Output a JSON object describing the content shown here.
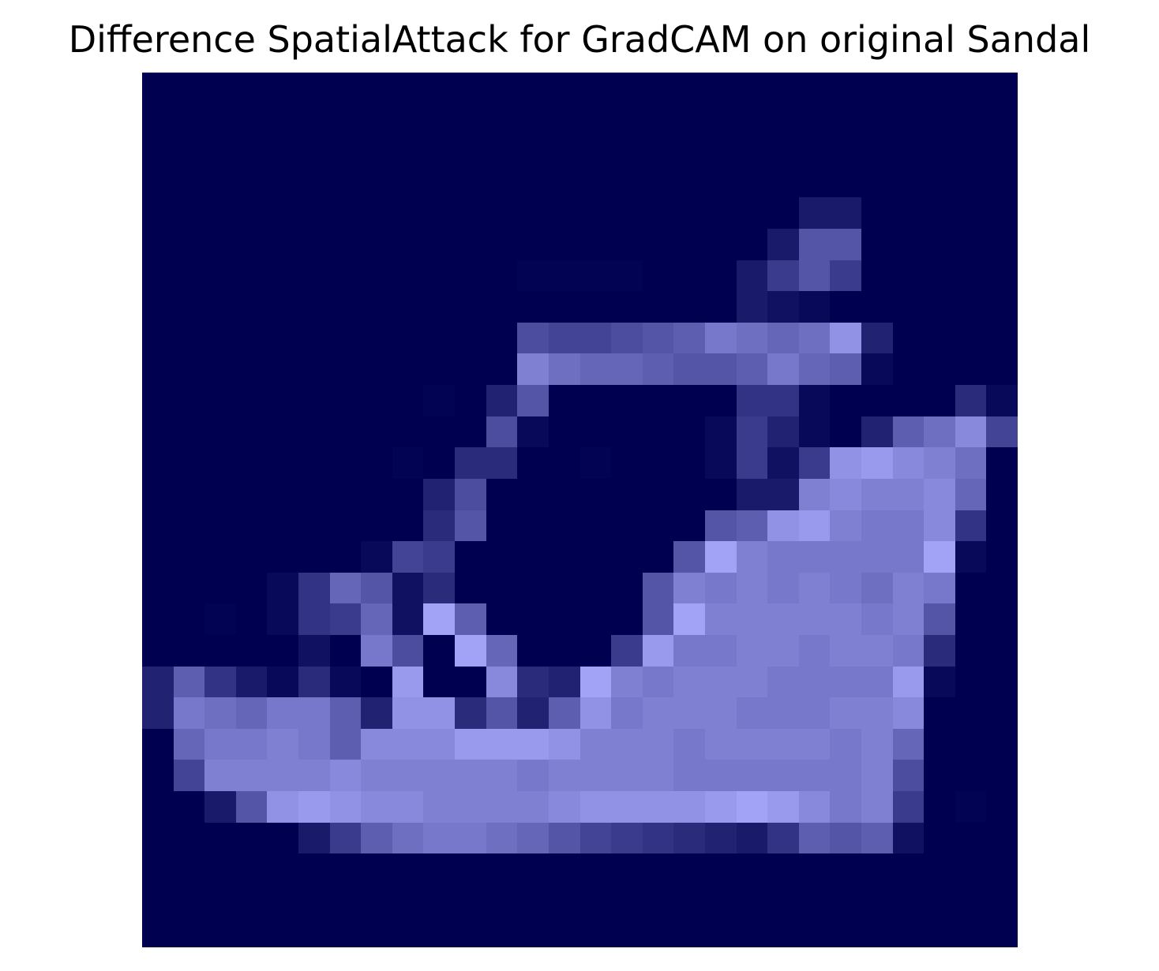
{
  "chart_data": {
    "type": "heatmap",
    "title": "Difference SpatialAttack for GradCAM on original Sandal",
    "xlabel": "",
    "ylabel": "",
    "axes_visible": false,
    "grid": false,
    "colorbar": false,
    "rows": 28,
    "cols": 28,
    "value_range": [
      0,
      1
    ],
    "colors": {
      "low": "#000050",
      "high": "#aaaaff"
    },
    "values": [
      [
        0,
        0,
        0,
        0,
        0,
        0,
        0,
        0,
        0,
        0,
        0,
        0,
        0,
        0,
        0,
        0,
        0,
        0,
        0,
        0,
        0,
        0,
        0,
        0,
        0,
        0,
        0,
        0
      ],
      [
        0,
        0,
        0,
        0,
        0,
        0,
        0,
        0,
        0,
        0,
        0,
        0,
        0,
        0,
        0,
        0,
        0,
        0,
        0,
        0,
        0,
        0,
        0,
        0,
        0,
        0,
        0,
        0
      ],
      [
        0,
        0,
        0,
        0,
        0,
        0,
        0,
        0,
        0,
        0,
        0,
        0,
        0,
        0,
        0,
        0,
        0,
        0,
        0,
        0,
        0,
        0,
        0,
        0,
        0,
        0,
        0,
        0
      ],
      [
        0,
        0,
        0,
        0,
        0,
        0,
        0,
        0,
        0,
        0,
        0,
        0,
        0,
        0,
        0,
        0,
        0,
        0,
        0,
        0,
        0,
        0,
        0,
        0,
        0,
        0,
        0,
        0
      ],
      [
        0,
        0,
        0,
        0,
        0,
        0,
        0,
        0,
        0,
        0,
        0,
        0,
        0,
        0,
        0,
        0,
        0,
        0,
        0,
        0,
        0,
        0.15,
        0.15,
        0,
        0,
        0,
        0,
        0
      ],
      [
        0,
        0,
        0,
        0,
        0,
        0,
        0,
        0,
        0,
        0,
        0,
        0,
        0,
        0,
        0,
        0,
        0,
        0,
        0,
        0,
        0.15,
        0.5,
        0.5,
        0,
        0,
        0,
        0,
        0
      ],
      [
        0,
        0,
        0,
        0,
        0,
        0,
        0,
        0,
        0,
        0,
        0,
        0,
        0.02,
        0.02,
        0.02,
        0.02,
        0,
        0,
        0,
        0.15,
        0.35,
        0.5,
        0.35,
        0,
        0,
        0,
        0,
        0
      ],
      [
        0,
        0,
        0,
        0,
        0,
        0,
        0,
        0,
        0,
        0,
        0,
        0,
        0,
        0,
        0,
        0,
        0,
        0,
        0,
        0.15,
        0.1,
        0.05,
        0,
        0,
        0,
        0,
        0,
        0
      ],
      [
        0,
        0,
        0,
        0,
        0,
        0,
        0,
        0,
        0,
        0,
        0,
        0,
        0.45,
        0.4,
        0.4,
        0.45,
        0.5,
        0.55,
        0.7,
        0.65,
        0.6,
        0.65,
        0.85,
        0.2,
        0,
        0,
        0,
        0
      ],
      [
        0,
        0,
        0,
        0,
        0,
        0,
        0,
        0,
        0,
        0,
        0,
        0,
        0.75,
        0.65,
        0.6,
        0.6,
        0.55,
        0.5,
        0.5,
        0.55,
        0.7,
        0.6,
        0.55,
        0.05,
        0,
        0,
        0,
        0
      ],
      [
        0,
        0,
        0,
        0,
        0,
        0,
        0,
        0,
        0,
        0.02,
        0,
        0.2,
        0.5,
        0,
        0,
        0,
        0,
        0,
        0,
        0.3,
        0.3,
        0.05,
        0,
        0,
        0,
        0,
        0.25,
        0.05
      ],
      [
        0,
        0,
        0,
        0,
        0,
        0,
        0,
        0,
        0,
        0,
        0,
        0.45,
        0.05,
        0,
        0,
        0,
        0,
        0,
        0.05,
        0.35,
        0.2,
        0.05,
        0,
        0.2,
        0.55,
        0.65,
        0.8,
        0.4
      ],
      [
        0,
        0,
        0,
        0,
        0,
        0,
        0,
        0,
        0.02,
        0,
        0.25,
        0.25,
        0,
        0,
        0.02,
        0,
        0,
        0,
        0.05,
        0.35,
        0.1,
        0.35,
        0.85,
        0.9,
        0.8,
        0.75,
        0.65,
        0
      ],
      [
        0,
        0,
        0,
        0,
        0,
        0,
        0,
        0,
        0,
        0.2,
        0.45,
        0,
        0,
        0,
        0,
        0,
        0,
        0,
        0,
        0.15,
        0.15,
        0.75,
        0.8,
        0.75,
        0.75,
        0.8,
        0.6,
        0
      ],
      [
        0,
        0,
        0,
        0,
        0,
        0,
        0,
        0,
        0,
        0.25,
        0.5,
        0,
        0,
        0,
        0,
        0,
        0,
        0,
        0.5,
        0.55,
        0.85,
        0.9,
        0.75,
        0.7,
        0.7,
        0.8,
        0.3,
        0
      ],
      [
        0,
        0,
        0,
        0,
        0,
        0,
        0,
        0.05,
        0.4,
        0.35,
        0,
        0,
        0,
        0,
        0,
        0,
        0,
        0.5,
        0.95,
        0.75,
        0.7,
        0.7,
        0.7,
        0.7,
        0.7,
        0.95,
        0.05,
        0
      ],
      [
        0,
        0,
        0,
        0,
        0.05,
        0.3,
        0.6,
        0.5,
        0.1,
        0.25,
        0,
        0,
        0,
        0,
        0,
        0,
        0.5,
        0.75,
        0.7,
        0.75,
        0.7,
        0.75,
        0.7,
        0.65,
        0.75,
        0.7,
        0,
        0
      ],
      [
        0,
        0,
        0.02,
        0,
        0.05,
        0.3,
        0.35,
        0.6,
        0.1,
        0.95,
        0.55,
        0,
        0,
        0,
        0,
        0,
        0.5,
        0.95,
        0.75,
        0.75,
        0.75,
        0.75,
        0.75,
        0.7,
        0.75,
        0.5,
        0,
        0
      ],
      [
        0,
        0,
        0,
        0,
        0,
        0.1,
        0,
        0.7,
        0.45,
        0,
        0.95,
        0.6,
        0,
        0,
        0,
        0.35,
        0.9,
        0.7,
        0.7,
        0.75,
        0.75,
        0.7,
        0.75,
        0.75,
        0.7,
        0.25,
        0,
        0
      ],
      [
        0.2,
        0.55,
        0.3,
        0.15,
        0.05,
        0.25,
        0.05,
        0,
        0.9,
        0,
        0,
        0.8,
        0.25,
        0.2,
        0.95,
        0.75,
        0.7,
        0.75,
        0.75,
        0.75,
        0.7,
        0.7,
        0.7,
        0.7,
        0.9,
        0.05,
        0,
        0
      ],
      [
        0.2,
        0.7,
        0.65,
        0.6,
        0.7,
        0.7,
        0.55,
        0.2,
        0.85,
        0.85,
        0.25,
        0.5,
        0.2,
        0.55,
        0.85,
        0.7,
        0.75,
        0.75,
        0.75,
        0.7,
        0.7,
        0.7,
        0.75,
        0.75,
        0.8,
        0,
        0,
        0
      ],
      [
        0,
        0.6,
        0.7,
        0.7,
        0.75,
        0.7,
        0.55,
        0.8,
        0.8,
        0.8,
        0.9,
        0.9,
        0.9,
        0.85,
        0.75,
        0.75,
        0.75,
        0.7,
        0.75,
        0.75,
        0.75,
        0.75,
        0.7,
        0.75,
        0.6,
        0,
        0,
        0
      ],
      [
        0,
        0.4,
        0.75,
        0.75,
        0.75,
        0.75,
        0.8,
        0.75,
        0.75,
        0.75,
        0.75,
        0.75,
        0.7,
        0.75,
        0.75,
        0.75,
        0.75,
        0.7,
        0.7,
        0.7,
        0.7,
        0.7,
        0.7,
        0.75,
        0.45,
        0,
        0,
        0
      ],
      [
        0,
        0,
        0.15,
        0.5,
        0.85,
        0.9,
        0.85,
        0.8,
        0.8,
        0.75,
        0.75,
        0.75,
        0.75,
        0.8,
        0.85,
        0.85,
        0.85,
        0.85,
        0.9,
        0.95,
        0.9,
        0.8,
        0.7,
        0.75,
        0.35,
        0,
        0.02,
        0
      ],
      [
        0,
        0,
        0,
        0,
        0,
        0.15,
        0.35,
        0.55,
        0.65,
        0.7,
        0.7,
        0.65,
        0.6,
        0.5,
        0.4,
        0.35,
        0.3,
        0.25,
        0.2,
        0.15,
        0.3,
        0.55,
        0.5,
        0.55,
        0.1,
        0,
        0,
        0
      ],
      [
        0,
        0,
        0,
        0,
        0,
        0,
        0,
        0,
        0,
        0,
        0,
        0,
        0,
        0,
        0,
        0,
        0,
        0,
        0,
        0,
        0,
        0,
        0,
        0,
        0,
        0,
        0,
        0
      ],
      [
        0,
        0,
        0,
        0,
        0,
        0,
        0,
        0,
        0,
        0,
        0,
        0,
        0,
        0,
        0,
        0,
        0,
        0,
        0,
        0,
        0,
        0,
        0,
        0,
        0,
        0,
        0,
        0
      ],
      [
        0,
        0,
        0,
        0,
        0,
        0,
        0,
        0,
        0,
        0,
        0,
        0,
        0,
        0,
        0,
        0,
        0,
        0,
        0,
        0,
        0,
        0,
        0,
        0,
        0,
        0,
        0,
        0
      ]
    ]
  }
}
